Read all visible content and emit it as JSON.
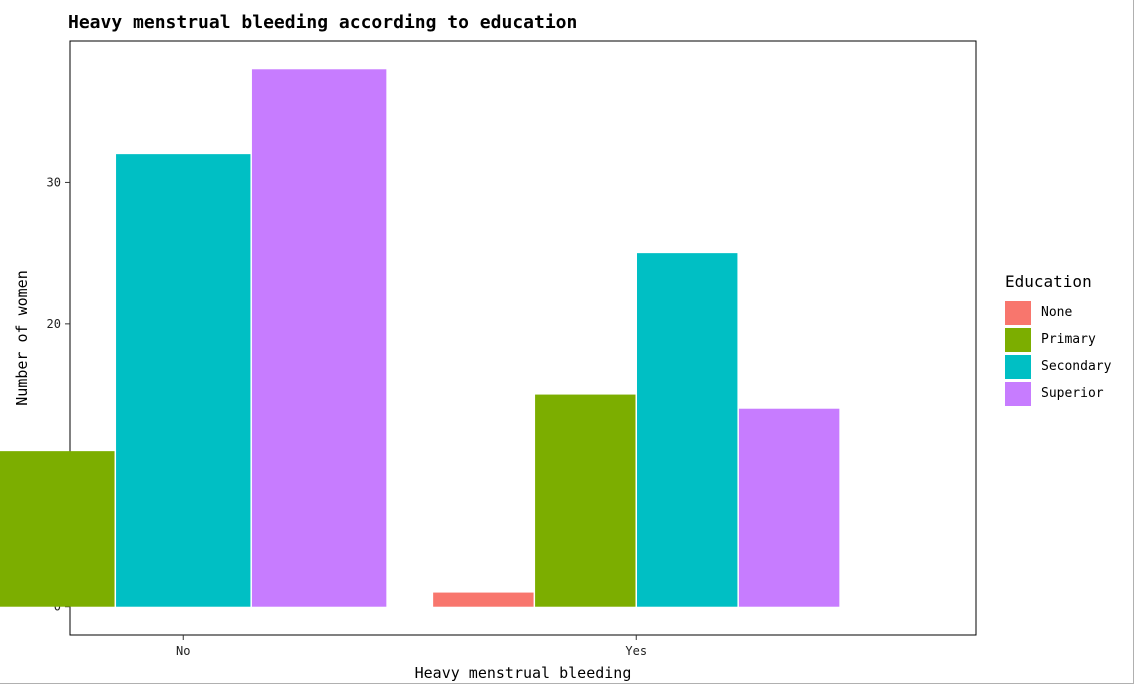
{
  "chart_data": {
    "type": "bar",
    "title": "Heavy menstrual bleeding according to education",
    "xlabel": "Heavy menstrual bleeding",
    "ylabel": "Number of women",
    "categories": [
      "No",
      "Yes"
    ],
    "series": [
      {
        "name": "None",
        "color": "#F8766D",
        "values": [
          null,
          1
        ]
      },
      {
        "name": "Primary",
        "color": "#7CAE00",
        "values": [
          11,
          15
        ]
      },
      {
        "name": "Secondary",
        "color": "#00BFC4",
        "values": [
          32,
          25
        ]
      },
      {
        "name": "Superior",
        "color": "#C77CFF",
        "values": [
          38,
          14
        ]
      }
    ],
    "ylim": [
      -2,
      40
    ],
    "yticks": [
      0,
      10,
      20,
      30
    ],
    "legend": {
      "title": "Education",
      "position": "right"
    },
    "grid": false,
    "bar_position": "dodge2"
  }
}
